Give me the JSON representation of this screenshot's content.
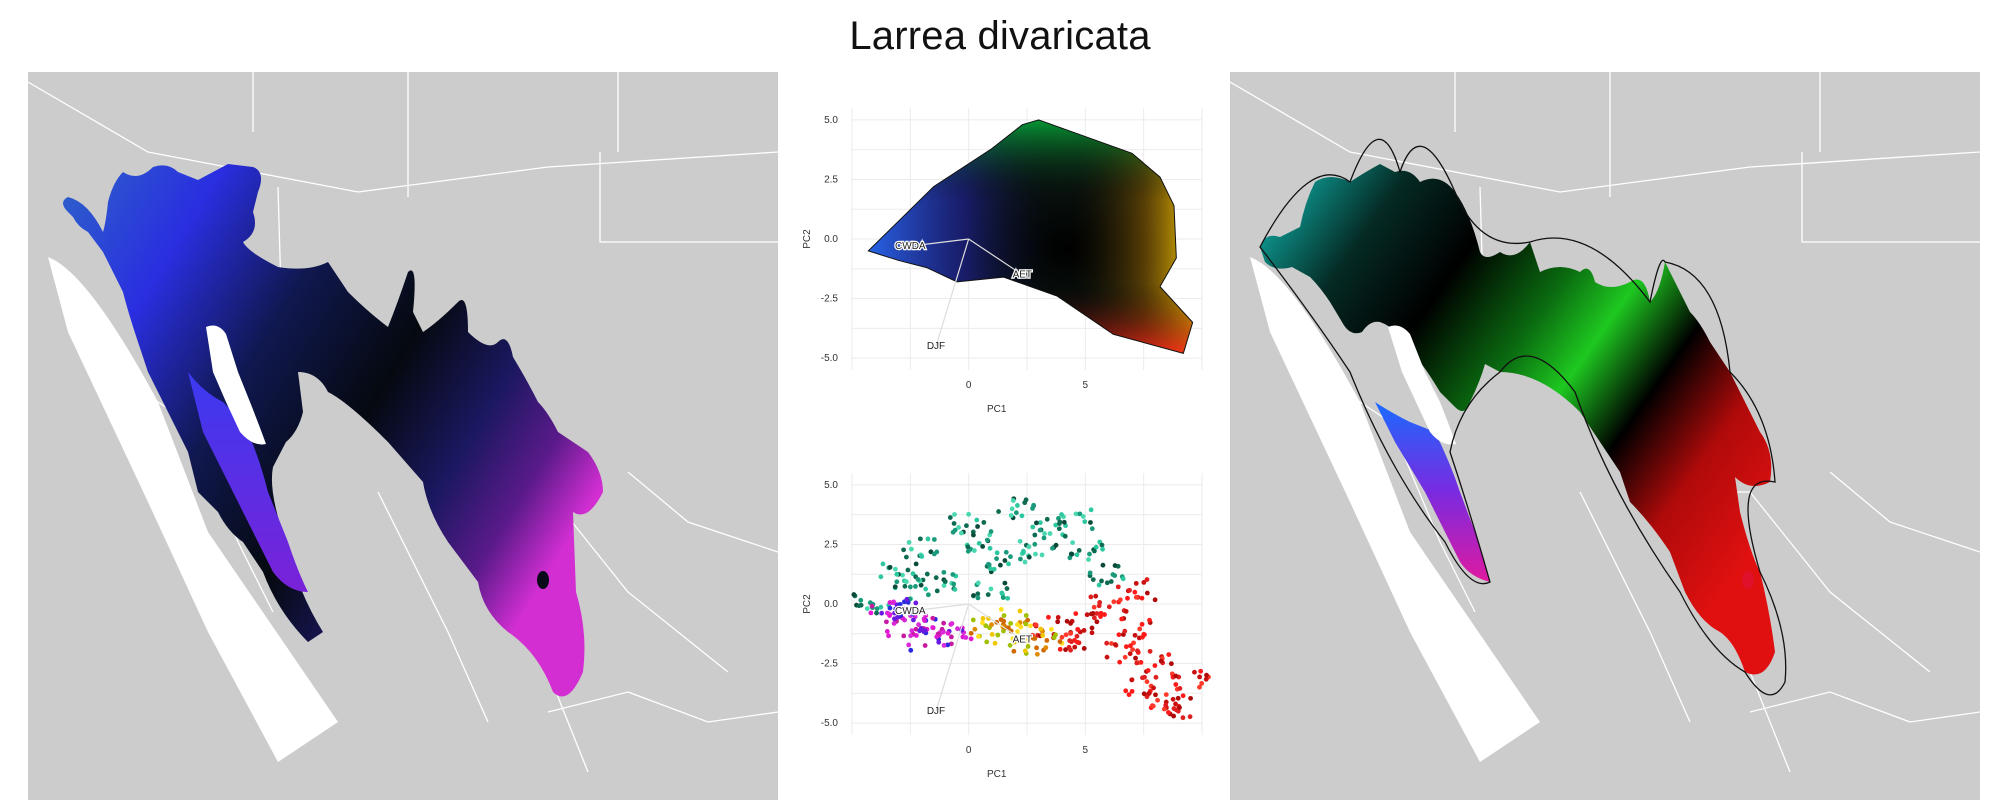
{
  "title": "Larrea divaricata",
  "colors": {
    "map_background": "#cccccc",
    "borders": "#ffffff"
  },
  "chart_data": [
    {
      "type": "scatter",
      "panel": "top",
      "xlabel": "PC1",
      "ylabel": "PC2",
      "xticks": [
        0,
        5
      ],
      "yticks": [
        5.0,
        2.5,
        0.0,
        -2.5,
        -5.0
      ],
      "ytick_labels": [
        "5.0",
        "2.5",
        "0.0",
        "-2.5",
        "-5.0"
      ],
      "xlim": [
        -5,
        10
      ],
      "ylim": [
        -5.5,
        5.5
      ],
      "grid": true,
      "loadings": [
        {
          "label": "CWDA",
          "x": -2.5,
          "y": -0.3
        },
        {
          "label": "AET",
          "x": 2.3,
          "y": -1.5
        },
        {
          "label": "DJF",
          "x": -1.4,
          "y": -4.5
        }
      ],
      "hull": [
        [
          -4.3,
          -0.5
        ],
        [
          -1.5,
          2.2
        ],
        [
          1.0,
          3.8
        ],
        [
          2.3,
          4.8
        ],
        [
          3.0,
          5.0
        ],
        [
          5,
          4.3
        ],
        [
          7,
          3.6
        ],
        [
          8.2,
          2.6
        ],
        [
          8.8,
          1.4
        ],
        [
          8.9,
          -0.8
        ],
        [
          8.2,
          -2.0
        ],
        [
          9.6,
          -3.5
        ],
        [
          9.2,
          -4.8
        ],
        [
          6.2,
          -4.0
        ],
        [
          3.8,
          -2.4
        ],
        [
          1.5,
          -1.6
        ],
        [
          -0.5,
          -1.8
        ],
        [
          -1.8,
          -1.2
        ],
        [
          -3.0,
          -0.9
        ]
      ]
    },
    {
      "type": "scatter",
      "panel": "bottom",
      "xlabel": "PC1",
      "ylabel": "PC2",
      "xticks": [
        0,
        5
      ],
      "yticks": [
        5.0,
        2.5,
        0.0,
        -2.5,
        -5.0
      ],
      "ytick_labels": [
        "5.0",
        "2.5",
        "0.0",
        "-2.5",
        "-5.0"
      ],
      "xlim": [
        -5,
        10
      ],
      "ylim": [
        -5.5,
        5.5
      ],
      "grid": true,
      "loadings": [
        {
          "label": "CWDA",
          "x": -2.5,
          "y": -0.3
        },
        {
          "label": "AET",
          "x": 2.3,
          "y": -1.5
        },
        {
          "label": "DJF",
          "x": -1.4,
          "y": -4.5
        }
      ],
      "series": [
        {
          "values": [
            [
              -4.2,
              0.0
            ],
            [
              -3,
              1.3
            ],
            [
              -2,
              2.4
            ],
            [
              0,
              3.4
            ],
            [
              2,
              4.0
            ],
            [
              3.5,
              3.2
            ],
            [
              5,
              2.2
            ],
            [
              6,
              1.2
            ],
            [
              1.5,
              1.8
            ],
            [
              -1,
              1.0
            ],
            [
              3,
              2.2
            ],
            [
              4.5,
              3.6
            ],
            [
              0.5,
              2.6
            ],
            [
              -2.5,
              0.6
            ],
            [
              1,
              0.6
            ]
          ]
        },
        {
          "values": [
            [
              -3.5,
              -0.3
            ],
            [
              -2.6,
              -0.2
            ],
            [
              -1.5,
              -0.8
            ],
            [
              -0.5,
              -1.4
            ],
            [
              -1.8,
              -1.5
            ],
            [
              -2.8,
              -0.9
            ]
          ]
        },
        {
          "values": [
            [
              5,
              -0.8
            ],
            [
              6.5,
              -2.0
            ],
            [
              7.5,
              -3.5
            ],
            [
              8.5,
              -4.0
            ],
            [
              9.5,
              -3.2
            ],
            [
              6,
              0.0
            ],
            [
              7,
              -1.0
            ],
            [
              8,
              -2.4
            ],
            [
              9,
              -4.4
            ],
            [
              4.5,
              -1.6
            ],
            [
              3.5,
              -1.0
            ],
            [
              7.2,
              0.6
            ]
          ]
        },
        {
          "values": [
            [
              1.5,
              -1.2
            ],
            [
              2.5,
              -1.7
            ],
            [
              3.2,
              -1.4
            ],
            [
              0.8,
              -1.0
            ],
            [
              2.0,
              -0.6
            ]
          ]
        }
      ]
    }
  ]
}
